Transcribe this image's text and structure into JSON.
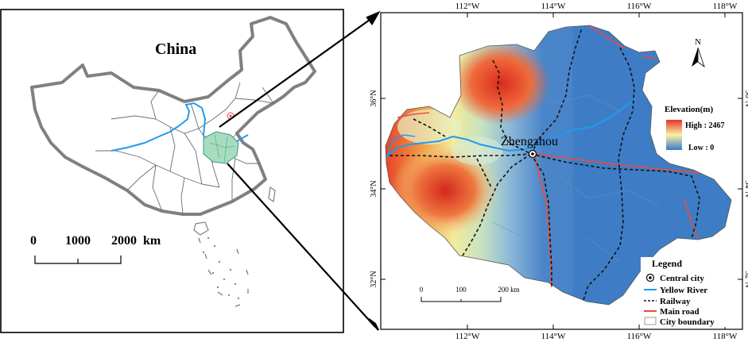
{
  "left_panel": {
    "title": "China",
    "scale_bar": {
      "labels": [
        "0",
        "1000",
        "2000"
      ],
      "unit": "km"
    }
  },
  "right_panel": {
    "top_ticks": [
      "112°W",
      "114°W",
      "116°W",
      "118°W"
    ],
    "bottom_ticks": [
      "112°W",
      "114°W",
      "116°W",
      "118°W"
    ],
    "lat_ticks": [
      "36°N",
      "34°N",
      "32°N"
    ],
    "north_label": "N",
    "central_city": "Zhengzhou",
    "elevation": {
      "title": "Elevation(m)",
      "high_label": "High : 2467",
      "low_label": "Low : 0",
      "high_color": "#e8322a",
      "mid_color": "#f7f2a6",
      "low_color": "#3a79c8"
    },
    "scale_bar": {
      "labels": [
        "0",
        "100",
        "200 km"
      ]
    },
    "legend": {
      "title": "Legend",
      "items": [
        {
          "label": "Central city",
          "symbol": "circle"
        },
        {
          "label": "Yellow River",
          "symbol": "line",
          "color": "#1f9bef"
        },
        {
          "label": "Railway",
          "symbol": "dash",
          "color": "#111111"
        },
        {
          "label": "Main road",
          "symbol": "line",
          "color": "#ee4a3a"
        },
        {
          "label": "City boundary",
          "symbol": "box",
          "color": "#9a9a9a"
        }
      ]
    }
  }
}
